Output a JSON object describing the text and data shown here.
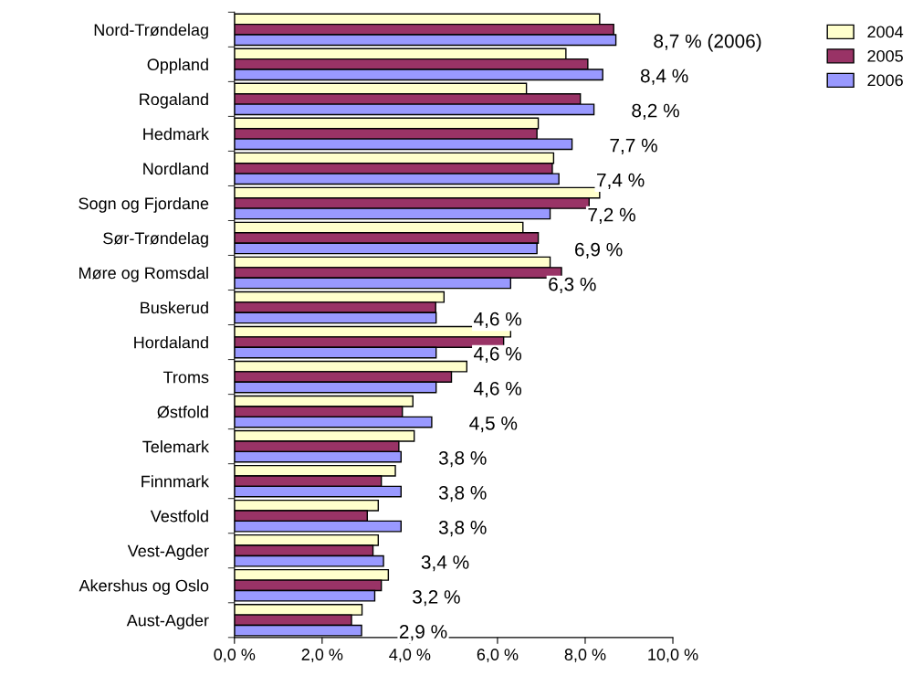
{
  "chart_data": {
    "type": "bar",
    "orientation": "horizontal",
    "categories": [
      "Nord-Trøndelag",
      "Oppland",
      "Rogaland",
      "Hedmark",
      "Nordland",
      "Sogn og Fjordane",
      "Sør-Trøndelag",
      "Møre og Romsdal",
      "Buskerud",
      "Hordaland",
      "Troms",
      "Østfold",
      "Telemark",
      "Finnmark",
      "Vestfold",
      "Vest-Agder",
      "Akershus og Oslo",
      "Aust-Agder"
    ],
    "series": [
      {
        "name": "2004",
        "color": "#ffffcc",
        "values": [
          8.33,
          7.56,
          6.66,
          6.93,
          7.28,
          8.33,
          6.58,
          7.2,
          4.78,
          6.3,
          5.3,
          4.07,
          4.1,
          3.67,
          3.28,
          3.28,
          3.51,
          2.91
        ]
      },
      {
        "name": "2005",
        "color": "#993366",
        "values": [
          8.65,
          8.06,
          7.89,
          6.9,
          7.25,
          8.09,
          6.93,
          7.46,
          4.59,
          6.14,
          4.95,
          3.83,
          3.75,
          3.35,
          3.03,
          3.16,
          3.35,
          2.67
        ]
      },
      {
        "name": "2006",
        "color": "#9999ff",
        "values": [
          8.7,
          8.4,
          8.2,
          7.7,
          7.4,
          7.2,
          6.9,
          6.3,
          4.6,
          4.6,
          4.6,
          4.5,
          3.8,
          3.8,
          3.8,
          3.4,
          3.2,
          2.9
        ],
        "value_labels": [
          "8,7 % (2006)",
          "8,4 %",
          "8,2 %",
          "7,7 %",
          "7,4 %",
          "7,2 %",
          "6,9 %",
          "6,3 %",
          "4,6 %",
          "4,6 %",
          "4,6 %",
          "4,5 %",
          "3,8 %",
          "3,8 %",
          "3,8 %",
          "3,4 %",
          "3,2 %",
          "2,9 %"
        ]
      }
    ],
    "xlim": [
      0,
      10
    ],
    "xticks": [
      {
        "value": 0,
        "label": "0,0 %"
      },
      {
        "value": 2,
        "label": "2,0 %"
      },
      {
        "value": 4,
        "label": "4,0 %"
      },
      {
        "value": 6,
        "label": "6,0 %"
      },
      {
        "value": 8,
        "label": "8,0 %"
      },
      {
        "value": 10,
        "label": "10,0 %"
      }
    ],
    "grid": false,
    "legend": "top right"
  }
}
